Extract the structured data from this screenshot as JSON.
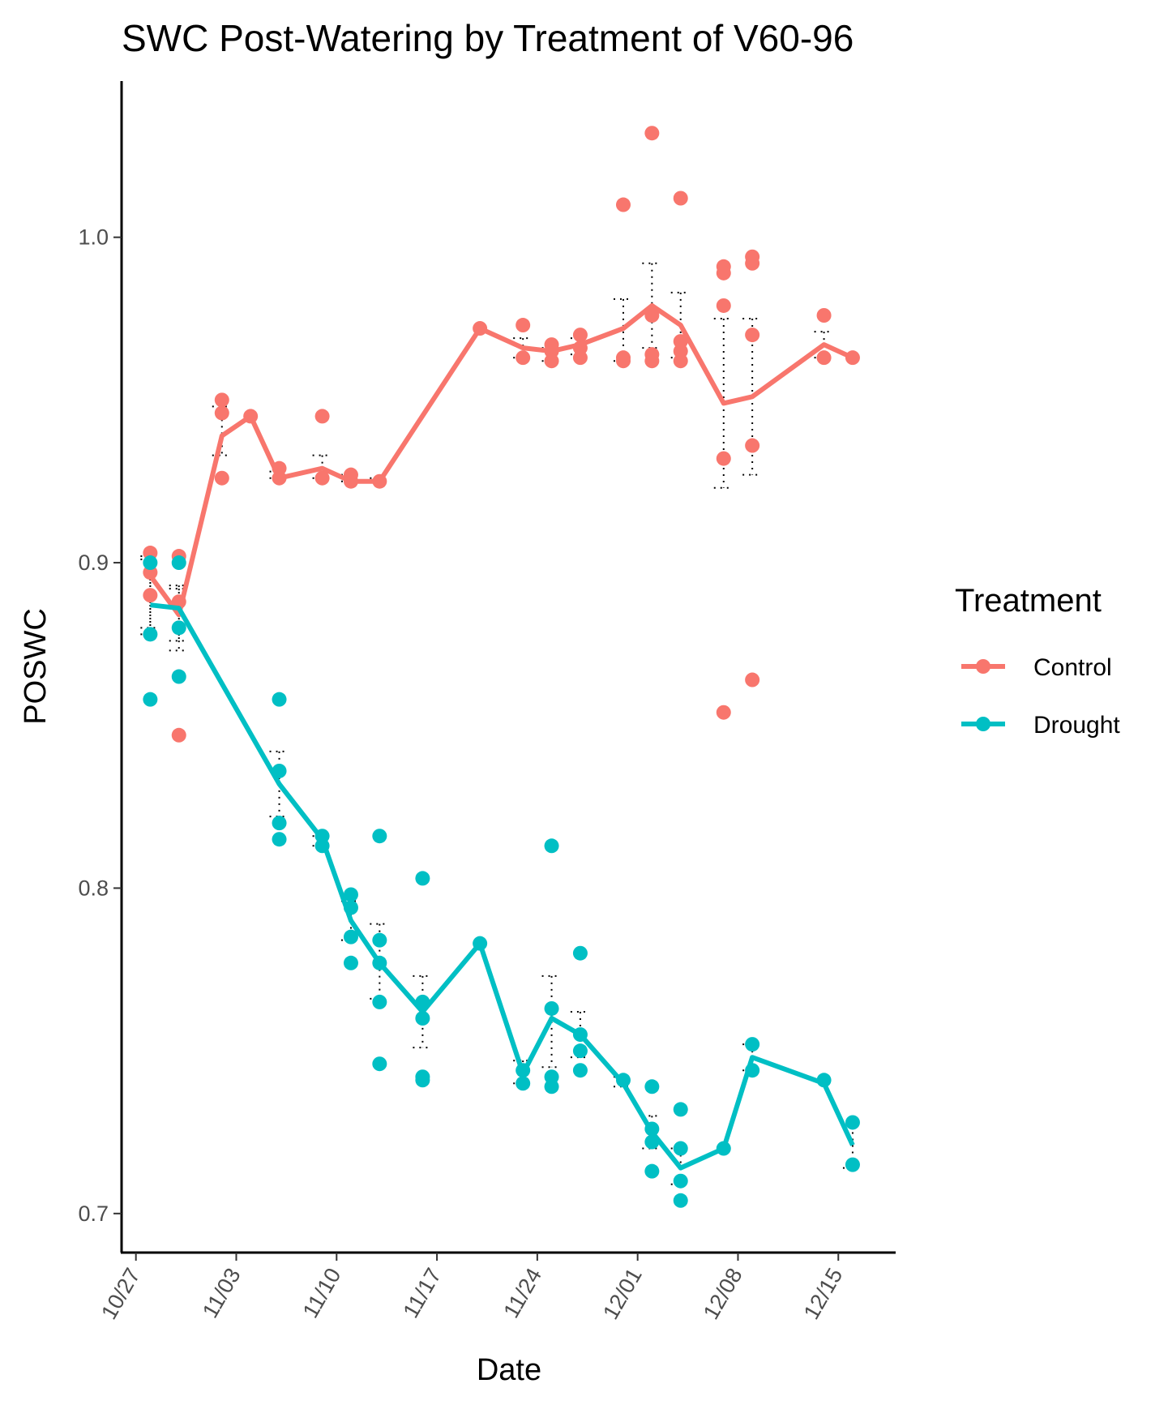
{
  "chart_data": {
    "type": "line",
    "title": "SWC Post-Watering by Treatment of V60-96",
    "xlabel": "Date",
    "ylabel": "POSWC",
    "x_ticks": [
      "10/27",
      "11/03",
      "11/10",
      "11/17",
      "11/24",
      "12/01",
      "12/08",
      "12/15"
    ],
    "y_ticks": [
      "0.7",
      "0.8",
      "0.9",
      "1.0"
    ],
    "xlim": [
      "2023-10-26",
      "2023-12-19"
    ],
    "ylim": [
      0.688,
      1.048
    ],
    "legend": {
      "title": "Treatment",
      "position": "right"
    },
    "grid": false,
    "series": [
      {
        "name": "Control",
        "color": "#F8766D",
        "mean_line": [
          {
            "x": "2023-10-28",
            "y": 0.896
          },
          {
            "x": "2023-10-30",
            "y": 0.884
          },
          {
            "x": "2023-11-02",
            "y": 0.939
          },
          {
            "x": "2023-11-04",
            "y": 0.945
          },
          {
            "x": "2023-11-06",
            "y": 0.926
          },
          {
            "x": "2023-11-09",
            "y": 0.929
          },
          {
            "x": "2023-11-11",
            "y": 0.925
          },
          {
            "x": "2023-11-13",
            "y": 0.925
          },
          {
            "x": "2023-11-20",
            "y": 0.972
          },
          {
            "x": "2023-11-23",
            "y": 0.966
          },
          {
            "x": "2023-11-25",
            "y": 0.965
          },
          {
            "x": "2023-11-27",
            "y": 0.967
          },
          {
            "x": "2023-11-30",
            "y": 0.972
          },
          {
            "x": "2023-12-02",
            "y": 0.979
          },
          {
            "x": "2023-12-04",
            "y": 0.973
          },
          {
            "x": "2023-12-07",
            "y": 0.949
          },
          {
            "x": "2023-12-09",
            "y": 0.951
          },
          {
            "x": "2023-12-14",
            "y": 0.967
          },
          {
            "x": "2023-12-16",
            "y": 0.963
          }
        ],
        "points": [
          {
            "x": "2023-10-28",
            "y": 0.903
          },
          {
            "x": "2023-10-28",
            "y": 0.897
          },
          {
            "x": "2023-10-28",
            "y": 0.89
          },
          {
            "x": "2023-10-30",
            "y": 0.902
          },
          {
            "x": "2023-10-30",
            "y": 0.888
          },
          {
            "x": "2023-10-30",
            "y": 0.847
          },
          {
            "x": "2023-11-02",
            "y": 0.95
          },
          {
            "x": "2023-11-02",
            "y": 0.946
          },
          {
            "x": "2023-11-02",
            "y": 0.926
          },
          {
            "x": "2023-11-04",
            "y": 0.945
          },
          {
            "x": "2023-11-06",
            "y": 0.929
          },
          {
            "x": "2023-11-06",
            "y": 0.926
          },
          {
            "x": "2023-11-09",
            "y": 0.945
          },
          {
            "x": "2023-11-09",
            "y": 0.926
          },
          {
            "x": "2023-11-11",
            "y": 0.927
          },
          {
            "x": "2023-11-11",
            "y": 0.925
          },
          {
            "x": "2023-11-13",
            "y": 0.925
          },
          {
            "x": "2023-11-20",
            "y": 0.972
          },
          {
            "x": "2023-11-23",
            "y": 0.973
          },
          {
            "x": "2023-11-23",
            "y": 0.963
          },
          {
            "x": "2023-11-25",
            "y": 0.967
          },
          {
            "x": "2023-11-25",
            "y": 0.965
          },
          {
            "x": "2023-11-25",
            "y": 0.962
          },
          {
            "x": "2023-11-27",
            "y": 0.97
          },
          {
            "x": "2023-11-27",
            "y": 0.966
          },
          {
            "x": "2023-11-27",
            "y": 0.963
          },
          {
            "x": "2023-11-30",
            "y": 1.01
          },
          {
            "x": "2023-11-30",
            "y": 0.963
          },
          {
            "x": "2023-11-30",
            "y": 0.962
          },
          {
            "x": "2023-12-02",
            "y": 1.032
          },
          {
            "x": "2023-12-02",
            "y": 0.976
          },
          {
            "x": "2023-12-02",
            "y": 0.964
          },
          {
            "x": "2023-12-02",
            "y": 0.962
          },
          {
            "x": "2023-12-04",
            "y": 1.012
          },
          {
            "x": "2023-12-04",
            "y": 0.968
          },
          {
            "x": "2023-12-04",
            "y": 0.965
          },
          {
            "x": "2023-12-04",
            "y": 0.962
          },
          {
            "x": "2023-12-07",
            "y": 0.991
          },
          {
            "x": "2023-12-07",
            "y": 0.989
          },
          {
            "x": "2023-12-07",
            "y": 0.979
          },
          {
            "x": "2023-12-07",
            "y": 0.932
          },
          {
            "x": "2023-12-07",
            "y": 0.854
          },
          {
            "x": "2023-12-09",
            "y": 0.994
          },
          {
            "x": "2023-12-09",
            "y": 0.992
          },
          {
            "x": "2023-12-09",
            "y": 0.97
          },
          {
            "x": "2023-12-09",
            "y": 0.936
          },
          {
            "x": "2023-12-09",
            "y": 0.864
          },
          {
            "x": "2023-12-14",
            "y": 0.976
          },
          {
            "x": "2023-12-14",
            "y": 0.963
          },
          {
            "x": "2023-12-16",
            "y": 0.963
          }
        ],
        "error_bars": [
          {
            "x": "2023-10-28",
            "low": 0.88,
            "high": 0.902
          },
          {
            "x": "2023-10-30",
            "low": 0.876,
            "high": 0.893
          },
          {
            "x": "2023-11-02",
            "low": 0.933,
            "high": 0.948
          },
          {
            "x": "2023-11-06",
            "low": 0.926,
            "high": 0.928
          },
          {
            "x": "2023-11-09",
            "low": 0.926,
            "high": 0.933
          },
          {
            "x": "2023-11-11",
            "low": 0.925,
            "high": 0.927
          },
          {
            "x": "2023-11-13",
            "low": 0.925,
            "high": 0.926
          },
          {
            "x": "2023-11-23",
            "low": 0.963,
            "high": 0.969
          },
          {
            "x": "2023-11-25",
            "low": 0.962,
            "high": 0.966
          },
          {
            "x": "2023-11-27",
            "low": 0.964,
            "high": 0.969
          },
          {
            "x": "2023-11-30",
            "low": 0.962,
            "high": 0.981
          },
          {
            "x": "2023-12-02",
            "low": 0.966,
            "high": 0.992
          },
          {
            "x": "2023-12-04",
            "low": 0.963,
            "high": 0.983
          },
          {
            "x": "2023-12-07",
            "low": 0.923,
            "high": 0.975
          },
          {
            "x": "2023-12-09",
            "low": 0.927,
            "high": 0.975
          },
          {
            "x": "2023-12-14",
            "low": 0.963,
            "high": 0.971
          }
        ]
      },
      {
        "name": "Drought",
        "color": "#00BFC4",
        "mean_line": [
          {
            "x": "2023-10-28",
            "y": 0.887
          },
          {
            "x": "2023-10-30",
            "y": 0.886
          },
          {
            "x": "2023-11-06",
            "y": 0.832
          },
          {
            "x": "2023-11-09",
            "y": 0.815
          },
          {
            "x": "2023-11-11",
            "y": 0.79
          },
          {
            "x": "2023-11-13",
            "y": 0.777
          },
          {
            "x": "2023-11-16",
            "y": 0.762
          },
          {
            "x": "2023-11-20",
            "y": 0.783
          },
          {
            "x": "2023-11-23",
            "y": 0.743
          },
          {
            "x": "2023-11-25",
            "y": 0.76
          },
          {
            "x": "2023-11-27",
            "y": 0.755
          },
          {
            "x": "2023-11-30",
            "y": 0.74
          },
          {
            "x": "2023-12-02",
            "y": 0.725
          },
          {
            "x": "2023-12-04",
            "y": 0.714
          },
          {
            "x": "2023-12-07",
            "y": 0.72
          },
          {
            "x": "2023-12-09",
            "y": 0.748
          },
          {
            "x": "2023-12-14",
            "y": 0.74
          },
          {
            "x": "2023-12-16",
            "y": 0.721
          }
        ],
        "points": [
          {
            "x": "2023-10-28",
            "y": 0.9
          },
          {
            "x": "2023-10-28",
            "y": 0.878
          },
          {
            "x": "2023-10-28",
            "y": 0.858
          },
          {
            "x": "2023-10-30",
            "y": 0.9
          },
          {
            "x": "2023-10-30",
            "y": 0.88
          },
          {
            "x": "2023-10-30",
            "y": 0.865
          },
          {
            "x": "2023-11-06",
            "y": 0.858
          },
          {
            "x": "2023-11-06",
            "y": 0.836
          },
          {
            "x": "2023-11-06",
            "y": 0.82
          },
          {
            "x": "2023-11-06",
            "y": 0.815
          },
          {
            "x": "2023-11-09",
            "y": 0.816
          },
          {
            "x": "2023-11-09",
            "y": 0.813
          },
          {
            "x": "2023-11-11",
            "y": 0.798
          },
          {
            "x": "2023-11-11",
            "y": 0.794
          },
          {
            "x": "2023-11-11",
            "y": 0.785
          },
          {
            "x": "2023-11-11",
            "y": 0.777
          },
          {
            "x": "2023-11-13",
            "y": 0.816
          },
          {
            "x": "2023-11-13",
            "y": 0.784
          },
          {
            "x": "2023-11-13",
            "y": 0.777
          },
          {
            "x": "2023-11-13",
            "y": 0.765
          },
          {
            "x": "2023-11-13",
            "y": 0.746
          },
          {
            "x": "2023-11-16",
            "y": 0.803
          },
          {
            "x": "2023-11-16",
            "y": 0.765
          },
          {
            "x": "2023-11-16",
            "y": 0.76
          },
          {
            "x": "2023-11-16",
            "y": 0.742
          },
          {
            "x": "2023-11-16",
            "y": 0.741
          },
          {
            "x": "2023-11-20",
            "y": 0.783
          },
          {
            "x": "2023-11-23",
            "y": 0.744
          },
          {
            "x": "2023-11-23",
            "y": 0.74
          },
          {
            "x": "2023-11-25",
            "y": 0.813
          },
          {
            "x": "2023-11-25",
            "y": 0.763
          },
          {
            "x": "2023-11-25",
            "y": 0.742
          },
          {
            "x": "2023-11-25",
            "y": 0.739
          },
          {
            "x": "2023-11-27",
            "y": 0.78
          },
          {
            "x": "2023-11-27",
            "y": 0.755
          },
          {
            "x": "2023-11-27",
            "y": 0.75
          },
          {
            "x": "2023-11-27",
            "y": 0.744
          },
          {
            "x": "2023-11-30",
            "y": 0.741
          },
          {
            "x": "2023-12-02",
            "y": 0.739
          },
          {
            "x": "2023-12-02",
            "y": 0.726
          },
          {
            "x": "2023-12-02",
            "y": 0.722
          },
          {
            "x": "2023-12-02",
            "y": 0.713
          },
          {
            "x": "2023-12-04",
            "y": 0.732
          },
          {
            "x": "2023-12-04",
            "y": 0.72
          },
          {
            "x": "2023-12-04",
            "y": 0.71
          },
          {
            "x": "2023-12-04",
            "y": 0.704
          },
          {
            "x": "2023-12-07",
            "y": 0.72
          },
          {
            "x": "2023-12-09",
            "y": 0.752
          },
          {
            "x": "2023-12-09",
            "y": 0.744
          },
          {
            "x": "2023-12-14",
            "y": 0.741
          },
          {
            "x": "2023-12-16",
            "y": 0.728
          },
          {
            "x": "2023-12-16",
            "y": 0.715
          }
        ],
        "error_bars": [
          {
            "x": "2023-10-28",
            "low": 0.878,
            "high": 0.901
          },
          {
            "x": "2023-10-30",
            "low": 0.873,
            "high": 0.892
          },
          {
            "x": "2023-11-06",
            "low": 0.822,
            "high": 0.842
          },
          {
            "x": "2023-11-09",
            "low": 0.813,
            "high": 0.816
          },
          {
            "x": "2023-11-11",
            "low": 0.784,
            "high": 0.796
          },
          {
            "x": "2023-11-13",
            "low": 0.766,
            "high": 0.789
          },
          {
            "x": "2023-11-16",
            "low": 0.751,
            "high": 0.773
          },
          {
            "x": "2023-11-23",
            "low": 0.74,
            "high": 0.747
          },
          {
            "x": "2023-11-25",
            "low": 0.745,
            "high": 0.773
          },
          {
            "x": "2023-11-27",
            "low": 0.748,
            "high": 0.762
          },
          {
            "x": "2023-11-30",
            "low": 0.739,
            "high": 0.742
          },
          {
            "x": "2023-12-02",
            "low": 0.72,
            "high": 0.73
          },
          {
            "x": "2023-12-04",
            "low": 0.709,
            "high": 0.72
          },
          {
            "x": "2023-12-09",
            "low": 0.744,
            "high": 0.752
          },
          {
            "x": "2023-12-16",
            "low": 0.714,
            "high": 0.727
          }
        ]
      }
    ]
  }
}
